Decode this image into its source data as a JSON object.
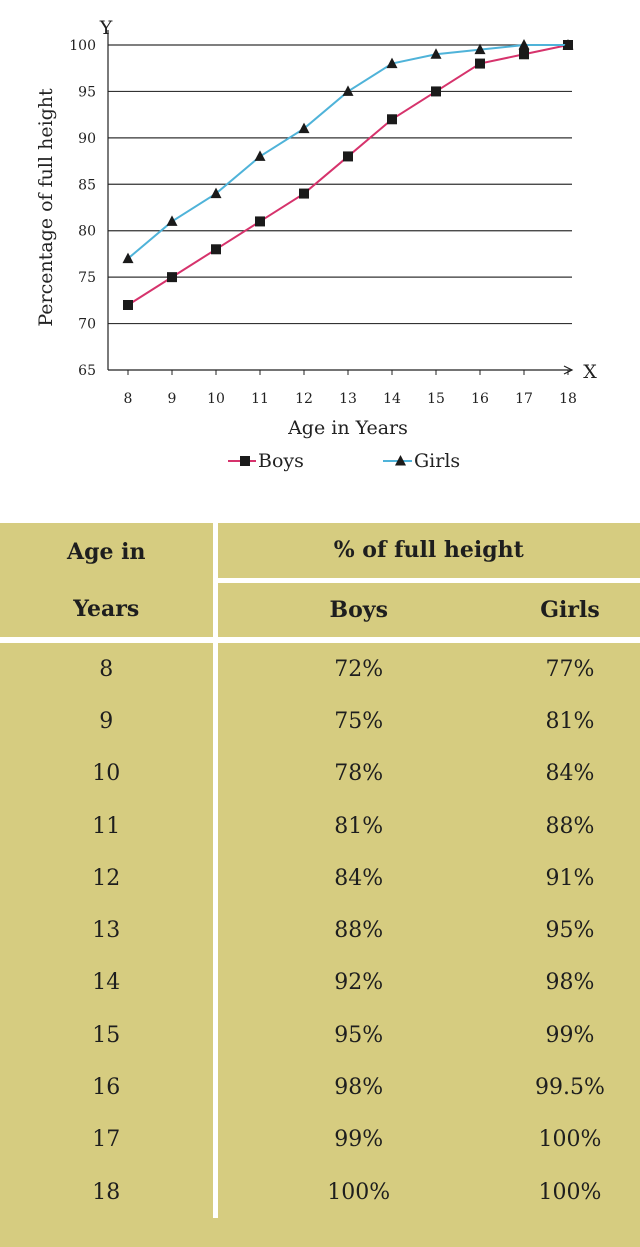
{
  "chart_data": {
    "type": "line",
    "x": [
      8,
      9,
      10,
      11,
      12,
      13,
      14,
      15,
      16,
      17,
      18
    ],
    "series": [
      {
        "name": "Boys",
        "marker": "square",
        "color": "#d6336c",
        "values": [
          72,
          75,
          78,
          81,
          84,
          88,
          92,
          95,
          98,
          99,
          100
        ]
      },
      {
        "name": "Girls",
        "marker": "triangle",
        "color": "#4fb3d9",
        "values": [
          77,
          81,
          84,
          88,
          91,
          95,
          98,
          99,
          99.5,
          100,
          100
        ]
      }
    ],
    "xlabel": "Age in Years",
    "ylabel": "Percentage of full height",
    "x_axis_letter": "X",
    "y_axis_letter": "Y",
    "xlim": [
      8,
      18
    ],
    "ylim": [
      65,
      100
    ],
    "yticks": [
      65,
      70,
      75,
      80,
      85,
      90,
      95,
      100
    ],
    "xticks": [
      8,
      9,
      10,
      11,
      12,
      13,
      14,
      15,
      16,
      17,
      18
    ],
    "grid": "horizontal",
    "legend": "bottom"
  },
  "table": {
    "header_age_line1": "Age in",
    "header_age_line2": "Years",
    "header_group": "% of full height",
    "header_boys": "Boys",
    "header_girls": "Girls",
    "rows": [
      {
        "age": "8",
        "boys": "72%",
        "girls": "77%"
      },
      {
        "age": "9",
        "boys": "75%",
        "girls": "81%"
      },
      {
        "age": "10",
        "boys": "78%",
        "girls": "84%"
      },
      {
        "age": "11",
        "boys": "81%",
        "girls": "88%"
      },
      {
        "age": "12",
        "boys": "84%",
        "girls": "91%"
      },
      {
        "age": "13",
        "boys": "88%",
        "girls": "95%"
      },
      {
        "age": "14",
        "boys": "92%",
        "girls": "98%"
      },
      {
        "age": "15",
        "boys": "95%",
        "girls": "99%"
      },
      {
        "age": "16",
        "boys": "98%",
        "girls": "99.5%"
      },
      {
        "age": "17",
        "boys": "99%",
        "girls": "100%"
      },
      {
        "age": "18",
        "boys": "100%",
        "girls": "100%"
      }
    ],
    "background_color": "#d6cc80"
  }
}
